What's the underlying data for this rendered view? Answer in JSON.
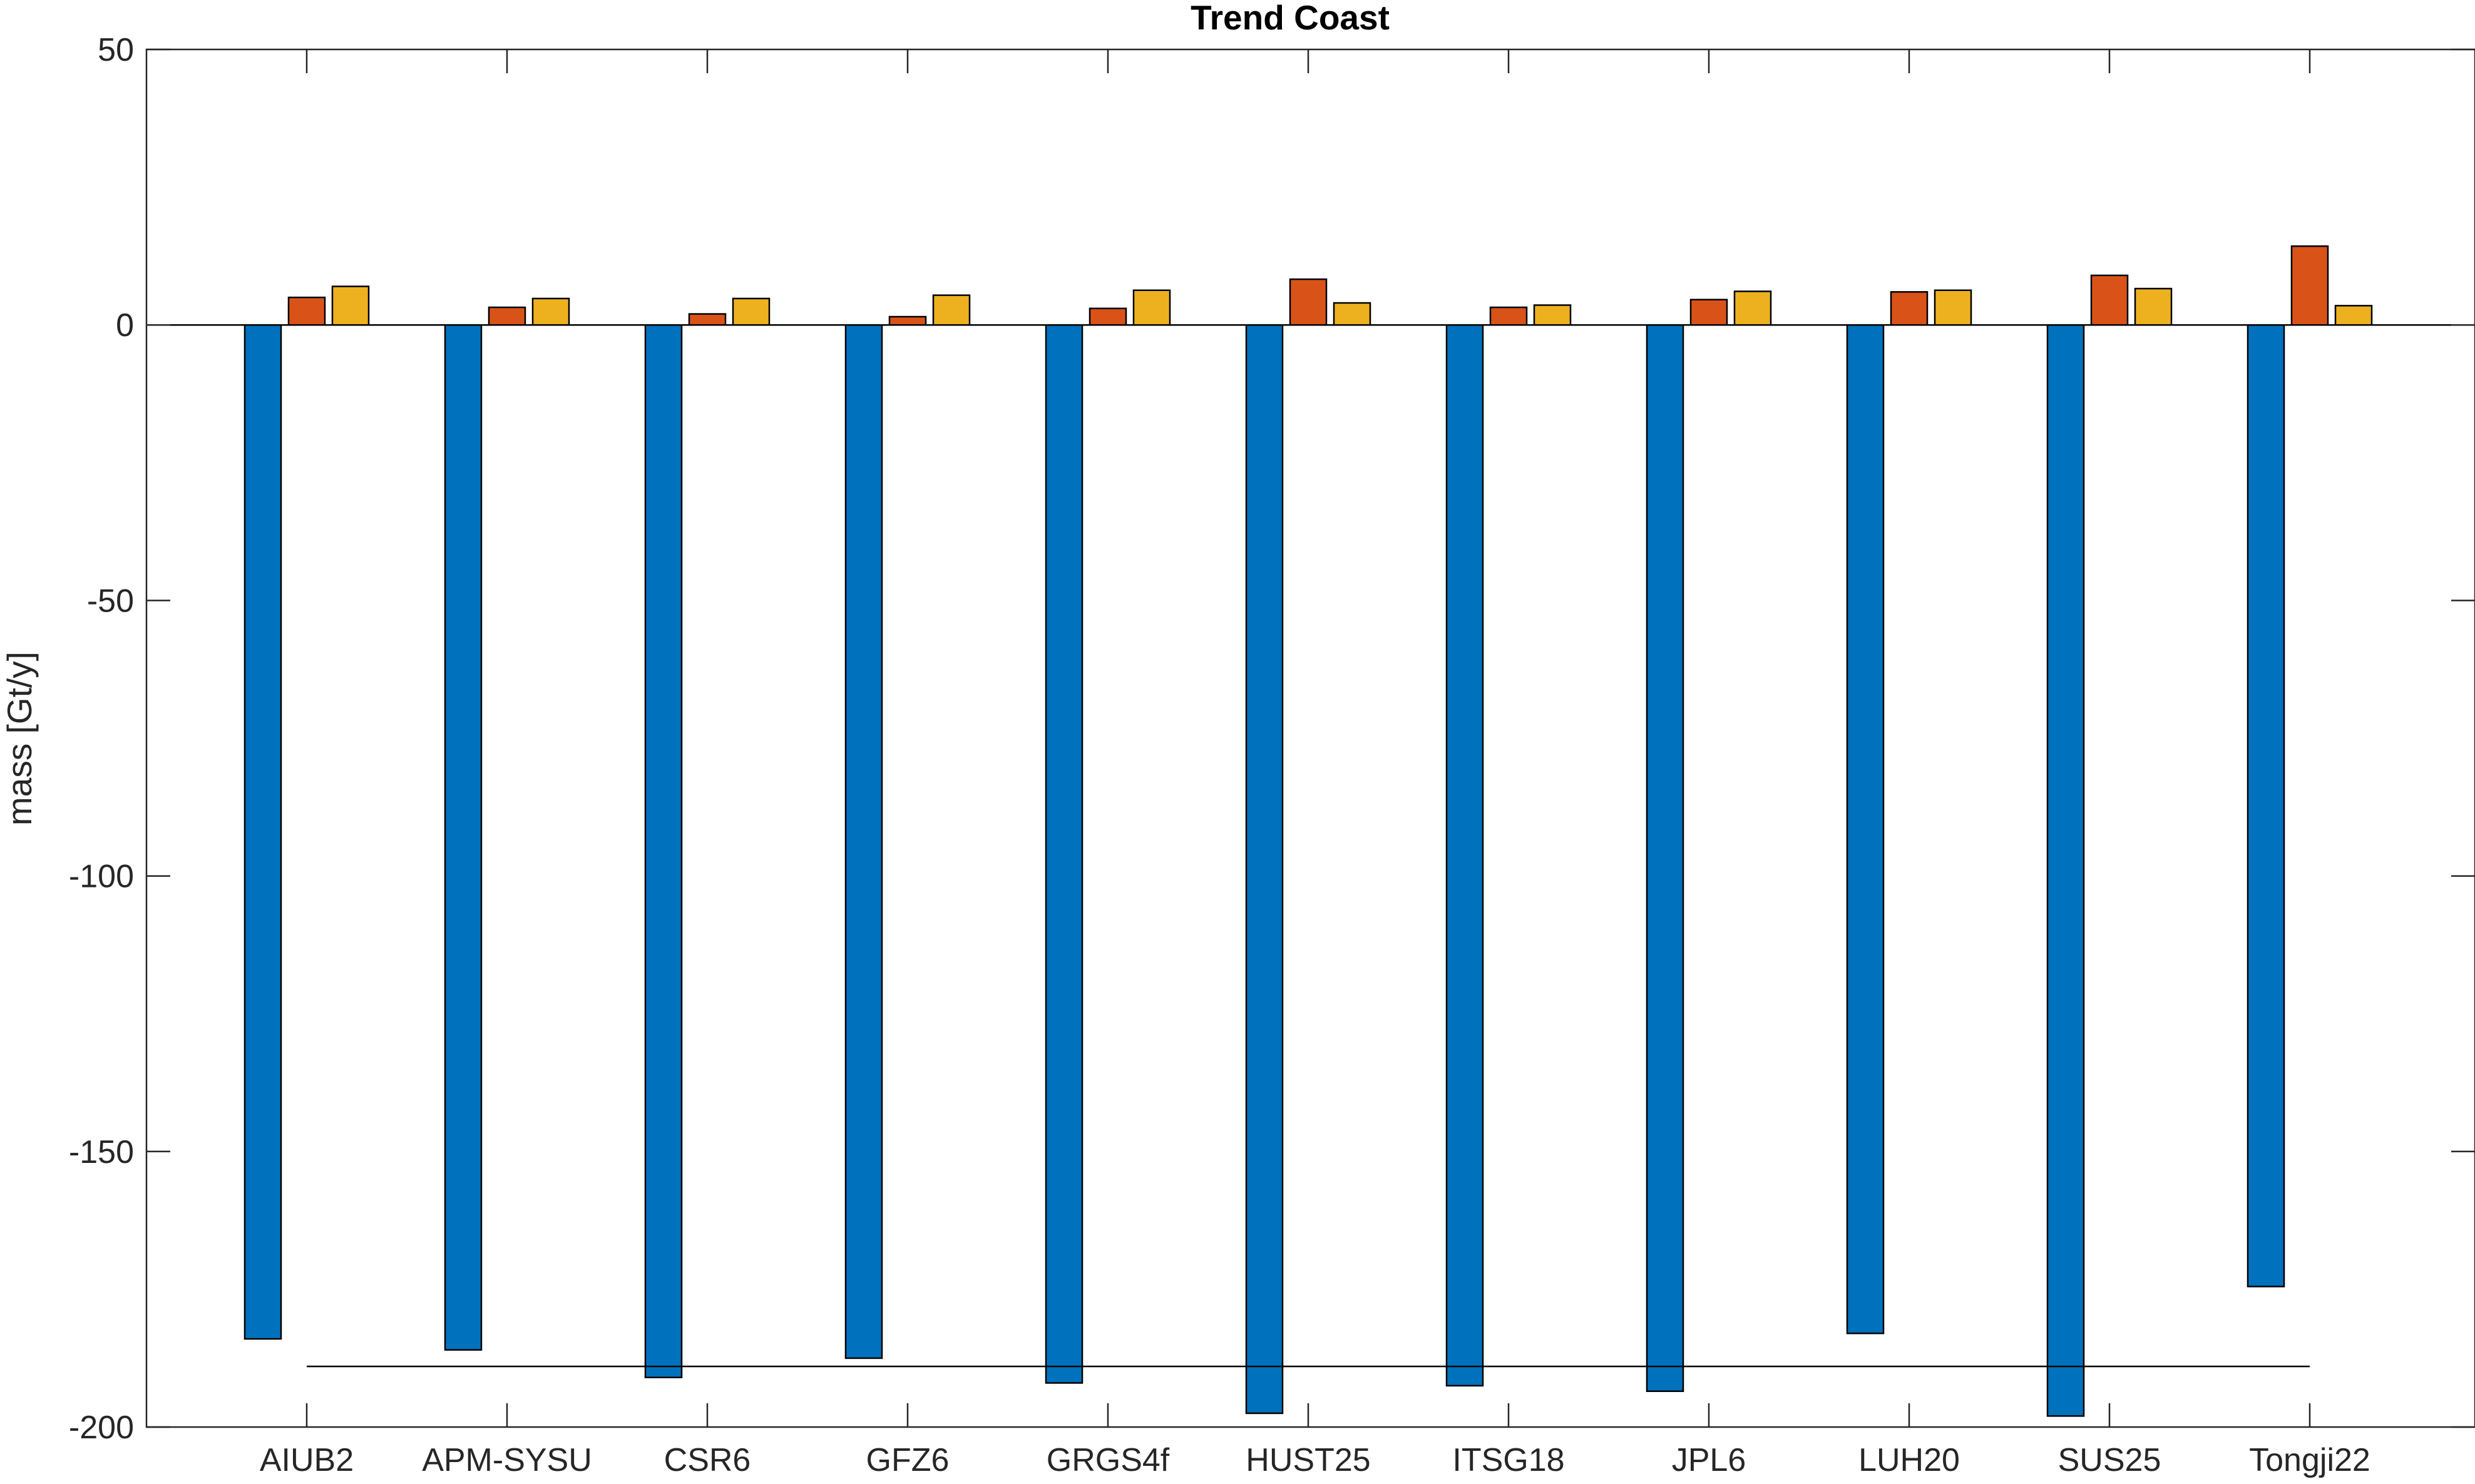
{
  "chart_data": {
    "type": "bar",
    "title": "Trend Coast",
    "xlabel": "",
    "ylabel": "mass [Gt/y]",
    "ylim": [
      -200,
      50
    ],
    "yticks": [
      50,
      0,
      -50,
      -100,
      -150,
      -200
    ],
    "categories": [
      "AIUB2",
      "APM-SYSU",
      "CSR6",
      "GFZ6",
      "GRGS4f",
      "HUST25",
      "ITSG18",
      "JPL6",
      "LUH20",
      "SUS25",
      "Tongji22"
    ],
    "series": [
      {
        "color": "#0072BD",
        "values": [
          -184,
          -186,
          -191,
          -187.5,
          -192,
          -197.5,
          -192.5,
          -193.5,
          -183,
          -198,
          -174.5
        ]
      },
      {
        "color": "#D95319",
        "values": [
          5,
          3.2,
          2,
          1.5,
          3,
          8.3,
          3.2,
          4.6,
          6,
          9,
          14.3
        ]
      },
      {
        "color": "#EDB120",
        "values": [
          7,
          4.8,
          4.8,
          5.4,
          6.3,
          4,
          3.6,
          6.1,
          6.3,
          6.6,
          3.5
        ]
      }
    ],
    "reference_line": {
      "value": -189,
      "from": "AIUB2",
      "to": "Tongji22"
    },
    "grid": false,
    "legend": "none"
  }
}
